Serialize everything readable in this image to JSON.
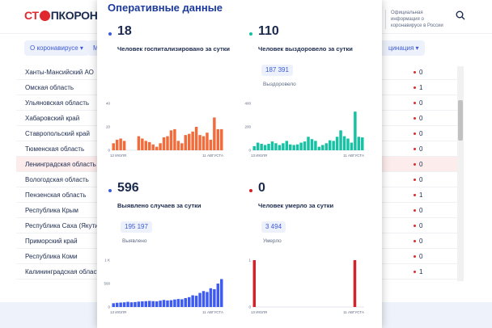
{
  "header": {
    "logo_prefix": "СТ",
    "logo_suffix": "ПКОРОНАВИ",
    "official_info": "Официальная информация о коронавирусе в России",
    "search_icon": "search-icon"
  },
  "filters": {
    "about_label": "О коронавирусе ▾",
    "second_label": "М",
    "right_label": "цинация ▾"
  },
  "regions": [
    {
      "name": "Ханты-Мансийский АО",
      "value": "0"
    },
    {
      "name": "Омская область",
      "value": "1"
    },
    {
      "name": "Ульяновская область",
      "value": "0"
    },
    {
      "name": "Хабаровский край",
      "value": "0"
    },
    {
      "name": "Ставропольский край",
      "value": "0"
    },
    {
      "name": "Тюменская область",
      "value": "0"
    },
    {
      "name": "Ленинградская область",
      "value": "0"
    },
    {
      "name": "Вологодская область",
      "value": "0"
    },
    {
      "name": "Пензенская область",
      "value": "1"
    },
    {
      "name": "Республика Крым",
      "value": "0"
    },
    {
      "name": "Республика Саха (Якутия)",
      "value": "0"
    },
    {
      "name": "Приморский край",
      "value": "0"
    },
    {
      "name": "Республика Коми",
      "value": "0"
    },
    {
      "name": "Калининградская область",
      "value": "1"
    }
  ],
  "panel": {
    "title": "Оперативные данные",
    "hospitalized": {
      "number": "18",
      "label": "Человек госпитализировано за сутки",
      "color": "#f26b3a",
      "dot_color": "#3d5bd9"
    },
    "recovered": {
      "number": "110",
      "label": "Человек выздоровело за сутки",
      "total": "187 391",
      "total_label": "Выздоровело",
      "color": "#16c2a3",
      "dot_color": "#16c2a3"
    },
    "cases": {
      "number": "596",
      "label": "Выявлено случаев за сутки",
      "total": "195 197",
      "total_label": "Выявлено",
      "color": "#3d5bf2",
      "dot_color": "#3d5bd9"
    },
    "deaths": {
      "number": "0",
      "label": "Человек умерло за сутки",
      "total": "3 494",
      "total_label": "Умерло",
      "color": "#d0232b",
      "dot_color": "#d0232b"
    }
  },
  "chart_data": [
    {
      "type": "bar",
      "series": [
        {
          "values": [
            6,
            9,
            10,
            8,
            0,
            0,
            0,
            12,
            10,
            8,
            7,
            5,
            3,
            6,
            11,
            12,
            17,
            18,
            8,
            6,
            13,
            14,
            16,
            20,
            13,
            12,
            15,
            9,
            28,
            18,
            18
          ]
        }
      ],
      "x_start_label": "12 ИЮЛЯ",
      "x_end_label": "11 АВГУСТА",
      "yticks": [
        0,
        20,
        40
      ],
      "ylim": [
        0,
        40
      ]
    },
    {
      "type": "bar",
      "series": [
        {
          "values": [
            35,
            65,
            55,
            45,
            55,
            75,
            60,
            45,
            60,
            80,
            50,
            45,
            50,
            65,
            75,
            115,
            95,
            80,
            30,
            45,
            60,
            85,
            80,
            115,
            170,
            120,
            100,
            65,
            330,
            115,
            110
          ]
        }
      ],
      "x_start_label": "13 ИЮЛЯ",
      "x_end_label": "11 АВГУСТА",
      "yticks": [
        0,
        200,
        400
      ],
      "ylim": [
        0,
        400
      ]
    },
    {
      "type": "bar",
      "series": [
        {
          "values": [
            80,
            90,
            95,
            100,
            110,
            100,
            105,
            115,
            120,
            125,
            130,
            125,
            120,
            135,
            150,
            140,
            145,
            160,
            170,
            165,
            190,
            210,
            250,
            240,
            300,
            340,
            320,
            400,
            380,
            500,
            596
          ]
        }
      ],
      "x_start_label": "13 ИЮЛЯ",
      "x_end_label": "11 АВГУСТА",
      "yticks": [
        0,
        500,
        "1 K"
      ],
      "ylim": [
        0,
        1000
      ]
    },
    {
      "type": "bar",
      "series": [
        {
          "values": [
            1,
            0,
            0,
            0,
            0,
            0,
            0,
            0,
            0,
            0,
            0,
            0,
            0,
            0,
            0,
            0,
            0,
            0,
            0,
            0,
            0,
            0,
            0,
            0,
            0,
            0,
            0,
            1,
            0,
            0
          ]
        }
      ],
      "x_start_label": "13 ИЮЛЯ",
      "x_end_label": "11 АВГУСТА",
      "yticks": [
        0,
        1
      ],
      "ylim": [
        0,
        1
      ]
    }
  ]
}
